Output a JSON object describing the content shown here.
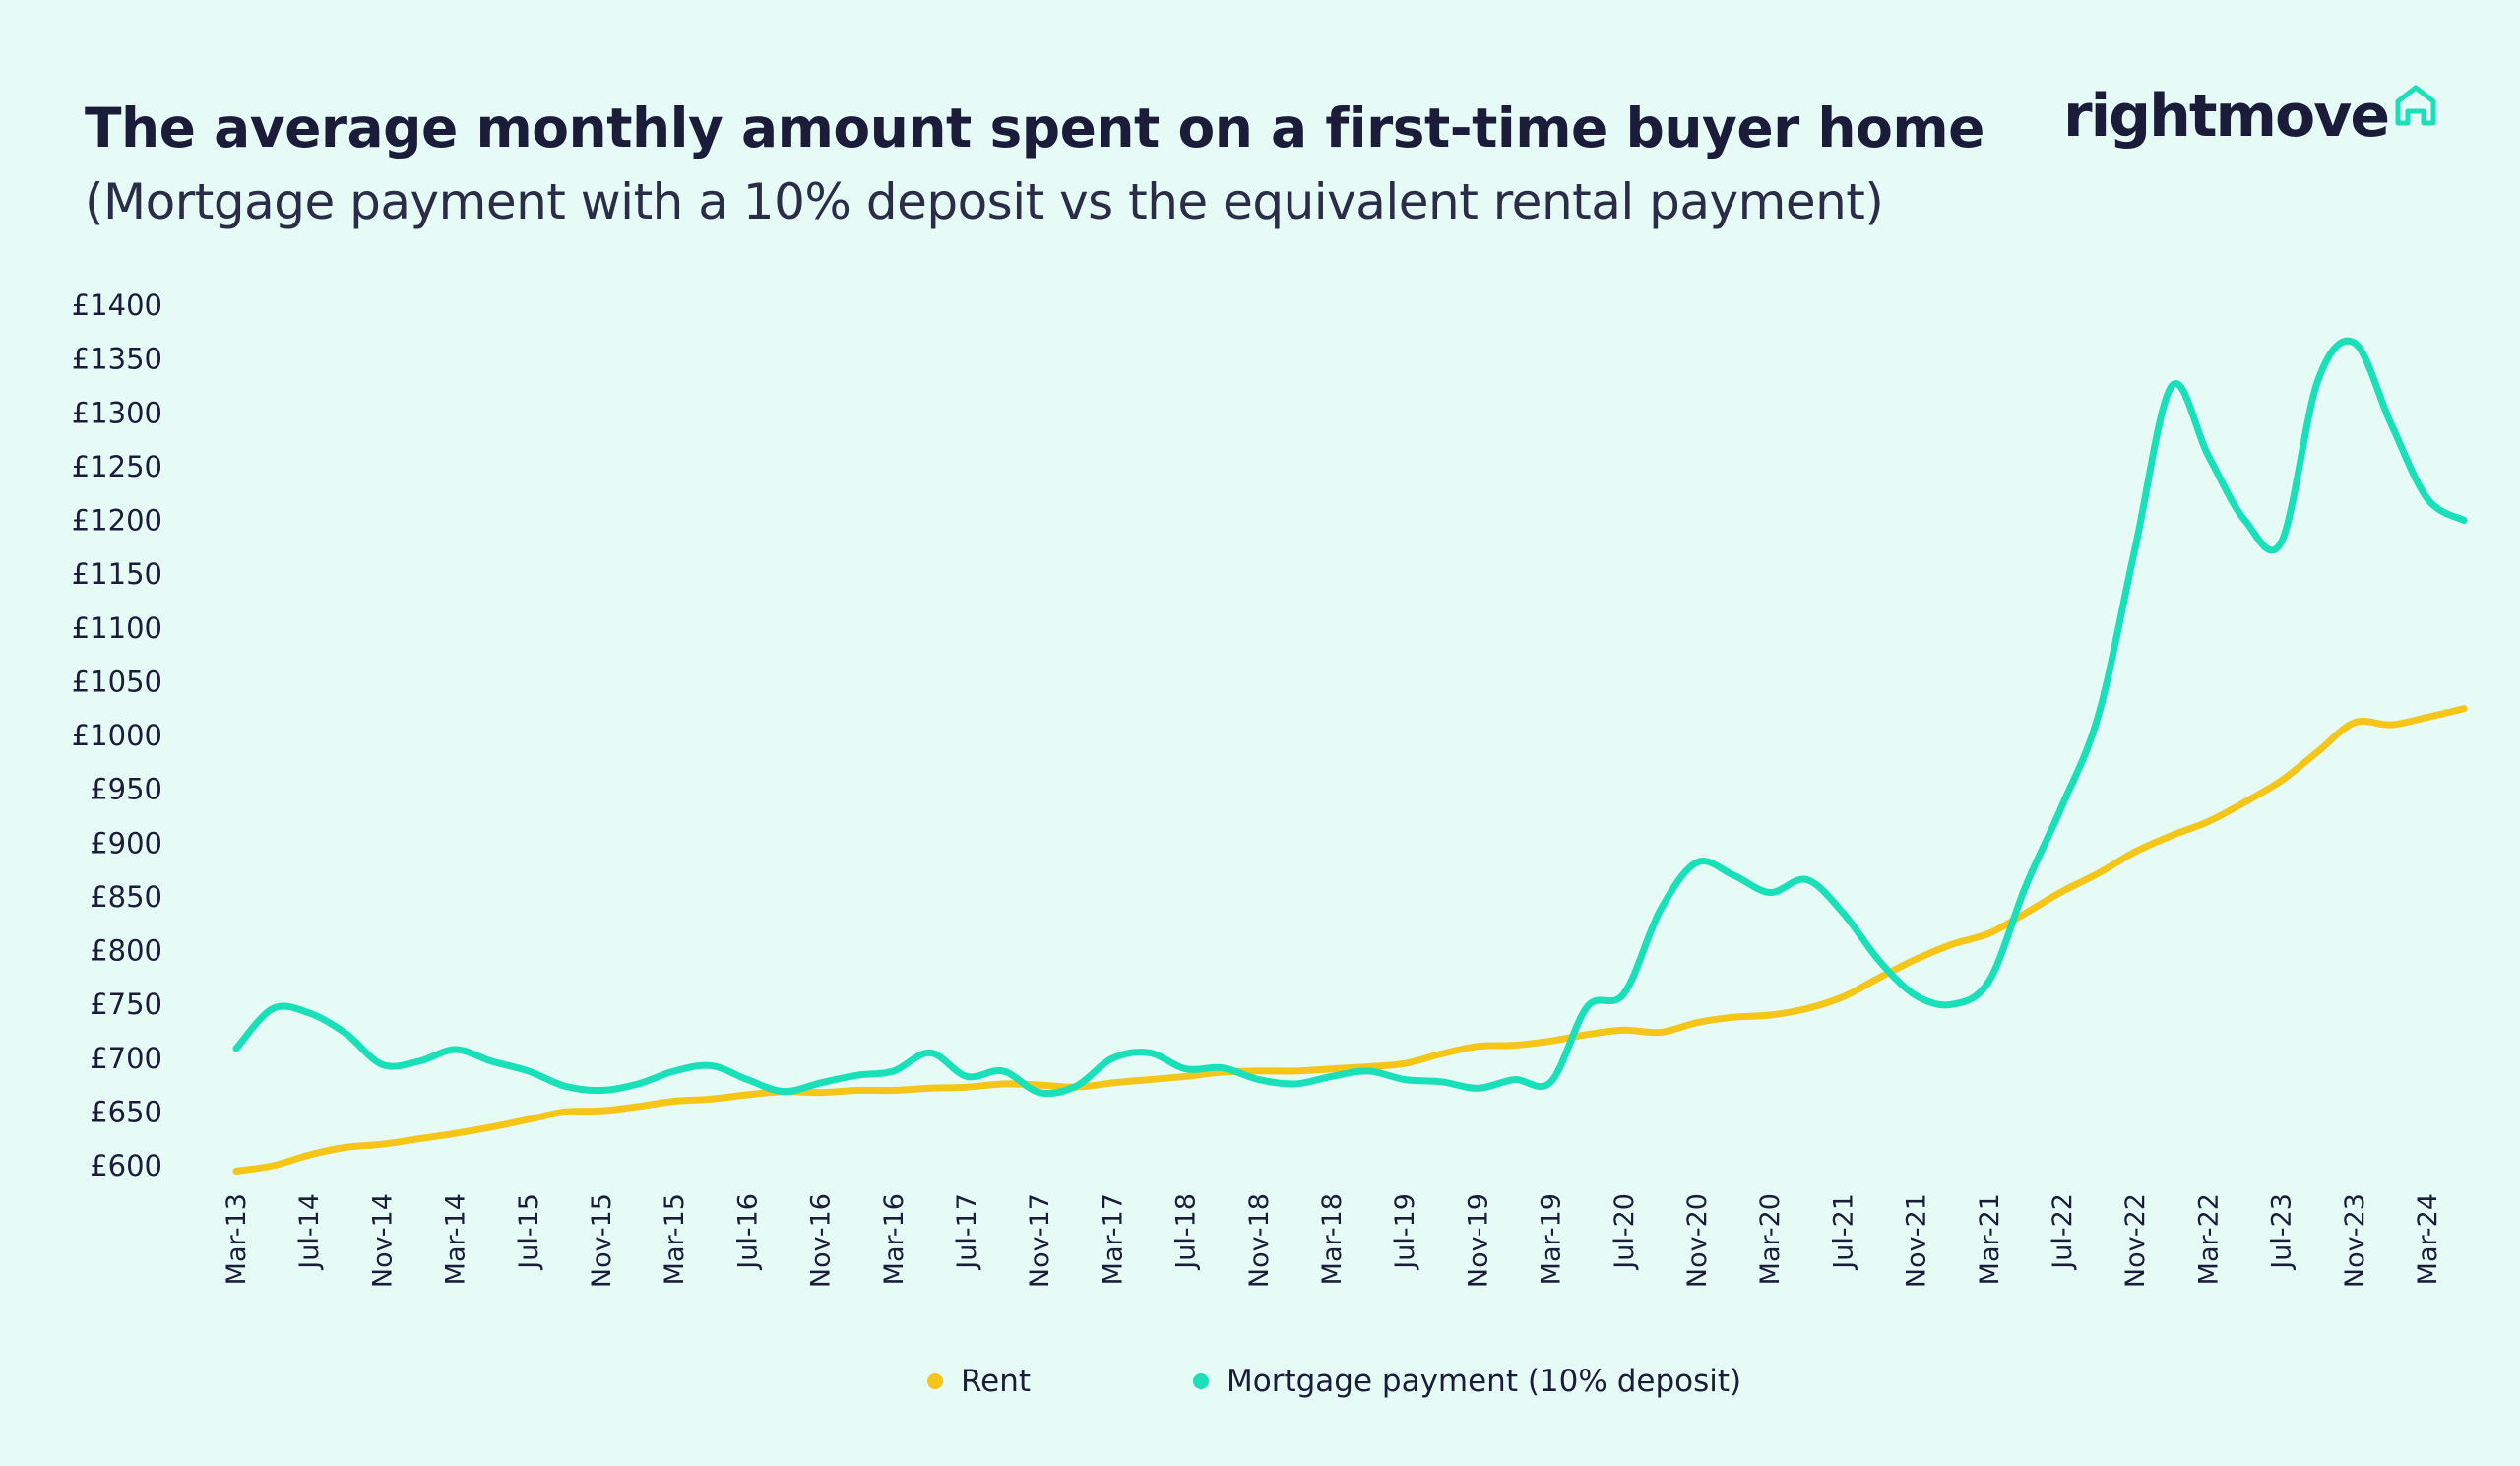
{
  "header": {
    "title": "The average monthly amount spent on a first-time buyer home",
    "subtitle": "(Mortgage payment with a 10% deposit vs the equivalent rental payment)"
  },
  "logo": {
    "text": "rightmove",
    "icon": "house-outline-icon"
  },
  "colors": {
    "background": "#e6fbf6",
    "rent": "#f5c518",
    "mortgage": "#19e0b8",
    "text": "#1b1c3a"
  },
  "chart_data": {
    "type": "line",
    "ylim": [
      600,
      1400
    ],
    "yticks": [
      "£1400",
      "£1350",
      "£1300",
      "£1250",
      "£1200",
      "£1150",
      "£1100",
      "£1050",
      "£1000",
      "£950",
      "£900",
      "£850",
      "£800",
      "£750",
      "£700",
      "£650",
      "£600"
    ],
    "ytick_values": [
      1400,
      1350,
      1300,
      1250,
      1200,
      1150,
      1100,
      1050,
      1000,
      950,
      900,
      850,
      800,
      750,
      700,
      650,
      600
    ],
    "categories": [
      "Mar-13",
      "Jul-14",
      "Nov-14",
      "Mar-14",
      "Jul-15",
      "Nov-15",
      "Mar-15",
      "Jul-16",
      "Nov-16",
      "Mar-16",
      "Jul-17",
      "Nov-17",
      "Mar-17",
      "Jul-18",
      "Nov-18",
      "Mar-18",
      "Jul-19",
      "Nov-19",
      "Mar-19",
      "Jul-20",
      "Nov-20",
      "Mar-20",
      "Jul-21",
      "Nov-21",
      "Mar-21",
      "Jul-22",
      "Nov-22",
      "Mar-22",
      "Jul-23",
      "Nov-23",
      "Mar-24"
    ],
    "grid": false,
    "legend_position": "bottom",
    "series": [
      {
        "name": "Rent",
        "color": "#f5c518",
        "values": [
          [
            0,
            595
          ],
          [
            0.5,
            600
          ],
          [
            1,
            610
          ],
          [
            1.5,
            617
          ],
          [
            2,
            620
          ],
          [
            2.5,
            625
          ],
          [
            3,
            630
          ],
          [
            3.5,
            636
          ],
          [
            4,
            643
          ],
          [
            4.5,
            650
          ],
          [
            5,
            651
          ],
          [
            5.5,
            655
          ],
          [
            6,
            660
          ],
          [
            6.5,
            662
          ],
          [
            7,
            666
          ],
          [
            7.5,
            669
          ],
          [
            8,
            668
          ],
          [
            8.5,
            670
          ],
          [
            9,
            670
          ],
          [
            9.5,
            672
          ],
          [
            10,
            673
          ],
          [
            10.5,
            676
          ],
          [
            11,
            675
          ],
          [
            11.5,
            673
          ],
          [
            12,
            677
          ],
          [
            12.5,
            680
          ],
          [
            13,
            683
          ],
          [
            13.5,
            687
          ],
          [
            14,
            688
          ],
          [
            14.5,
            688
          ],
          [
            15,
            690
          ],
          [
            15.5,
            692
          ],
          [
            16,
            695
          ],
          [
            16.5,
            704
          ],
          [
            17,
            711
          ],
          [
            17.5,
            712
          ],
          [
            18,
            716
          ],
          [
            18.5,
            722
          ],
          [
            19,
            726
          ],
          [
            19.5,
            724
          ],
          [
            20,
            733
          ],
          [
            20.5,
            738
          ],
          [
            21,
            740
          ],
          [
            21.5,
            746
          ],
          [
            22,
            757
          ],
          [
            22.5,
            775
          ],
          [
            23,
            792
          ],
          [
            23.5,
            806
          ],
          [
            24,
            816
          ],
          [
            24.5,
            835
          ],
          [
            25,
            855
          ],
          [
            25.5,
            872
          ],
          [
            26,
            892
          ],
          [
            26.5,
            907
          ],
          [
            27,
            920
          ],
          [
            27.5,
            938
          ],
          [
            28,
            958
          ],
          [
            28.5,
            985
          ],
          [
            29,
            1012
          ],
          [
            29.5,
            1010
          ],
          [
            30,
            1017
          ],
          [
            30.5,
            1025
          ]
        ]
      },
      {
        "name": "Mortgage payment (10% deposit)",
        "color": "#19e0b8",
        "values": [
          [
            0,
            709
          ],
          [
            0.5,
            746
          ],
          [
            1,
            742
          ],
          [
            1.5,
            723
          ],
          [
            2,
            694
          ],
          [
            2.5,
            697
          ],
          [
            3,
            708
          ],
          [
            3.5,
            697
          ],
          [
            4,
            688
          ],
          [
            4.5,
            674
          ],
          [
            5,
            670
          ],
          [
            5.5,
            676
          ],
          [
            6,
            688
          ],
          [
            6.5,
            693
          ],
          [
            7,
            680
          ],
          [
            7.5,
            669
          ],
          [
            8,
            677
          ],
          [
            8.5,
            684
          ],
          [
            9,
            688
          ],
          [
            9.5,
            705
          ],
          [
            10,
            683
          ],
          [
            10.5,
            688
          ],
          [
            11,
            668
          ],
          [
            11.5,
            674
          ],
          [
            12,
            700
          ],
          [
            12.5,
            705
          ],
          [
            13,
            690
          ],
          [
            13.5,
            691
          ],
          [
            14,
            680
          ],
          [
            14.5,
            676
          ],
          [
            15,
            683
          ],
          [
            15.5,
            688
          ],
          [
            16,
            680
          ],
          [
            16.5,
            678
          ],
          [
            17,
            672
          ],
          [
            17.5,
            680
          ],
          [
            18,
            678
          ],
          [
            18.5,
            748
          ],
          [
            19,
            760
          ],
          [
            19.5,
            838
          ],
          [
            20,
            882
          ],
          [
            20.5,
            870
          ],
          [
            21,
            854
          ],
          [
            21.5,
            866
          ],
          [
            22,
            835
          ],
          [
            22.5,
            790
          ],
          [
            23,
            758
          ],
          [
            23.5,
            750
          ],
          [
            24,
            772
          ],
          [
            24.5,
            860
          ],
          [
            25,
            935
          ],
          [
            25.5,
            1020
          ],
          [
            26,
            1175
          ],
          [
            26.5,
            1325
          ],
          [
            27,
            1260
          ],
          [
            27.5,
            1200
          ],
          [
            28,
            1180
          ],
          [
            28.5,
            1330
          ],
          [
            29,
            1365
          ],
          [
            29.5,
            1290
          ],
          [
            30,
            1220
          ],
          [
            30.5,
            1200
          ]
        ]
      }
    ]
  }
}
